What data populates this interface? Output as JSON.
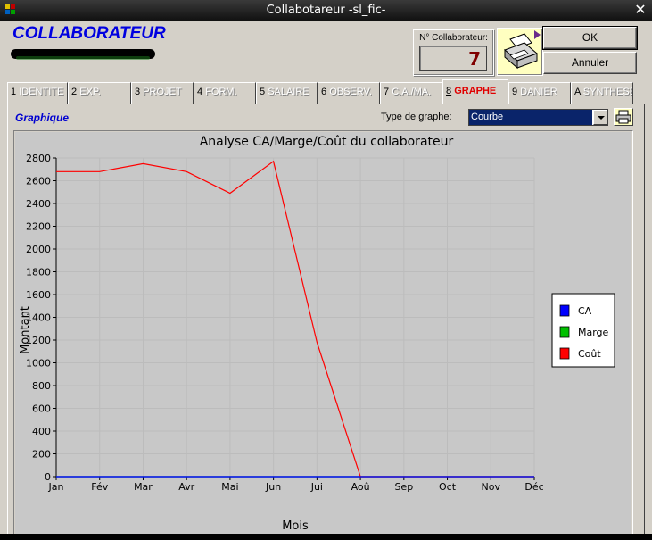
{
  "window": {
    "title": "Collabotareur -sl_fic-"
  },
  "header": {
    "title": "COLLABORATEUR",
    "number_label": "N° Collaborateur:",
    "number_value": "7",
    "ok_label": "OK",
    "cancel_label": "Annuler"
  },
  "tabs": [
    {
      "num": "1",
      "label": "IDENTITE"
    },
    {
      "num": "2",
      "label": "EXP."
    },
    {
      "num": "3",
      "label": "PROJET"
    },
    {
      "num": "4",
      "label": "FORM."
    },
    {
      "num": "5",
      "label": "SALAIRE"
    },
    {
      "num": "6",
      "label": "OBSERV."
    },
    {
      "num": "7",
      "label": "C.A./MA."
    },
    {
      "num": "8",
      "label": "GRAPHE"
    },
    {
      "num": "9",
      "label": "DANIER"
    },
    {
      "num": "A",
      "label": "SYNTHESE"
    }
  ],
  "active_tab_index": 7,
  "graph_panel": {
    "section_title": "Graphique",
    "type_label": "Type de graphe:",
    "type_value": "Courbe"
  },
  "colors": {
    "title_blue": "#0000e0",
    "active_tab": "#e00000",
    "number": "#800000"
  },
  "chart_data": {
    "type": "line",
    "title": "Analyse CA/Marge/Coût du collaborateur",
    "xlabel": "Mois",
    "ylabel": "Montant",
    "categories": [
      "Jan",
      "Fév",
      "Mar",
      "Avr",
      "Mai",
      "Jun",
      "Jui",
      "Aoû",
      "Sep",
      "Oct",
      "Nov",
      "Déc"
    ],
    "yticks": [
      0,
      200,
      400,
      600,
      800,
      1000,
      1200,
      1400,
      1600,
      1800,
      2000,
      2200,
      2400,
      2600,
      2800
    ],
    "ylim": [
      0,
      2800
    ],
    "grid": true,
    "legend_position": "right",
    "series": [
      {
        "name": "CA",
        "color": "#0000ff",
        "values": [
          0,
          0,
          0,
          0,
          0,
          0,
          0,
          0,
          0,
          0,
          0,
          0
        ]
      },
      {
        "name": "Marge",
        "color": "#00c000",
        "values": [
          0,
          0,
          0,
          0,
          0,
          0,
          0,
          0,
          0,
          0,
          0,
          0
        ]
      },
      {
        "name": "Coût",
        "color": "#ff0000",
        "values": [
          2680,
          2680,
          2750,
          2680,
          2490,
          2770,
          1180,
          0,
          0,
          0,
          0,
          0
        ]
      }
    ]
  }
}
